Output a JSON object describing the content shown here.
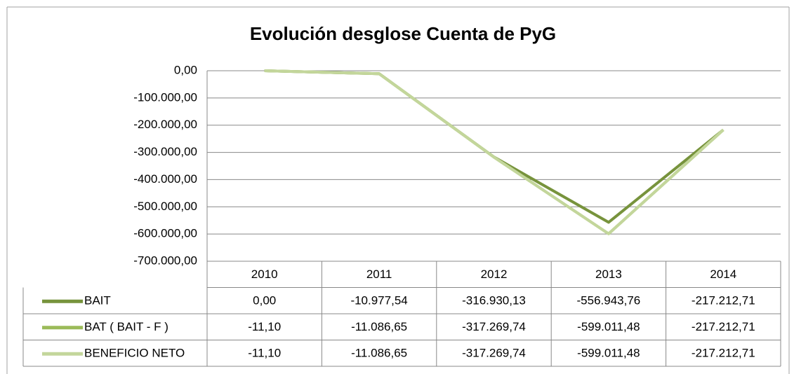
{
  "chart_data": {
    "type": "line",
    "title": "Evolución desglose Cuenta de PyG",
    "categories": [
      "2010",
      "2011",
      "2012",
      "2013",
      "2014"
    ],
    "series": [
      {
        "name": "BAIT",
        "color": "#77933c",
        "values": [
          0,
          -10977.54,
          -316930.13,
          -556943.76,
          -217212.71
        ],
        "value_labels": [
          "0,00",
          "-10.977,54",
          "-316.930,13",
          "-556.943,76",
          "-217.212,71"
        ]
      },
      {
        "name": "BAT ( BAIT - F )",
        "color": "#9bbb59",
        "values": [
          -11.1,
          -11086.65,
          -317269.74,
          -599011.48,
          -217212.71
        ],
        "value_labels": [
          "-11,10",
          "-11.086,65",
          "-317.269,74",
          "-599.011,48",
          "-217.212,71"
        ]
      },
      {
        "name": "BENEFICIO NETO",
        "color": "#c3d69b",
        "values": [
          -11.1,
          -11086.65,
          -317269.74,
          -599011.48,
          -217212.71
        ],
        "value_labels": [
          "-11,10",
          "-11.086,65",
          "-317.269,74",
          "-599.011,48",
          "-217.212,71"
        ]
      }
    ],
    "ylim": [
      -700000,
      0
    ],
    "yticks": [
      {
        "value": 0,
        "label": "0,00"
      },
      {
        "value": -100000,
        "label": "-100.000,00"
      },
      {
        "value": -200000,
        "label": "-200.000,00"
      },
      {
        "value": -300000,
        "label": "-300.000,00"
      },
      {
        "value": -400000,
        "label": "-400.000,00"
      },
      {
        "value": -500000,
        "label": "-500.000,00"
      },
      {
        "value": -600000,
        "label": "-600.000,00"
      },
      {
        "value": -700000,
        "label": "-700.000,00"
      }
    ],
    "grid": true
  }
}
